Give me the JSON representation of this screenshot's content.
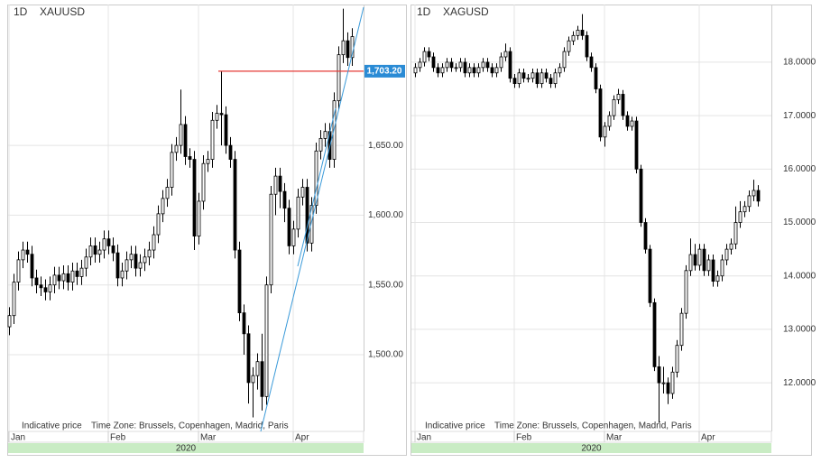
{
  "chart_data": [
    {
      "type": "candlestick",
      "timeframe": "1D",
      "title": "XAUUSD",
      "categories": [
        "Jan",
        null,
        null,
        null,
        null,
        null,
        null,
        null,
        null,
        null,
        null,
        null,
        null,
        null,
        null,
        null,
        null,
        null,
        null,
        null,
        null,
        null,
        "Feb",
        null,
        null,
        null,
        null,
        null,
        null,
        null,
        null,
        null,
        null,
        null,
        null,
        null,
        null,
        null,
        null,
        null,
        null,
        null,
        "Mar",
        null,
        null,
        null,
        null,
        null,
        null,
        null,
        null,
        null,
        null,
        null,
        null,
        null,
        null,
        null,
        null,
        null,
        null,
        null,
        null,
        "Apr",
        null,
        null,
        null,
        null,
        null,
        null,
        null,
        null,
        null,
        null,
        null,
        null,
        null
      ],
      "ohlc": [
        [
          1520,
          1534,
          1514,
          1528
        ],
        [
          1528,
          1558,
          1522,
          1552
        ],
        [
          1552,
          1574,
          1546,
          1568
        ],
        [
          1568,
          1581,
          1562,
          1575
        ],
        [
          1575,
          1581,
          1566,
          1572
        ],
        [
          1572,
          1578,
          1549,
          1555
        ],
        [
          1555,
          1561,
          1544,
          1550
        ],
        [
          1550,
          1556,
          1542,
          1548
        ],
        [
          1548,
          1554,
          1539,
          1545
        ],
        [
          1545,
          1556,
          1539,
          1550
        ],
        [
          1550,
          1563,
          1544,
          1557
        ],
        [
          1557,
          1563,
          1547,
          1553
        ],
        [
          1553,
          1564,
          1547,
          1558
        ],
        [
          1558,
          1564,
          1546,
          1552
        ],
        [
          1552,
          1566,
          1546,
          1560
        ],
        [
          1560,
          1566,
          1550,
          1556
        ],
        [
          1556,
          1568,
          1550,
          1562
        ],
        [
          1562,
          1576,
          1556,
          1570
        ],
        [
          1570,
          1584,
          1564,
          1578
        ],
        [
          1578,
          1584,
          1566,
          1572
        ],
        [
          1572,
          1581,
          1566,
          1575
        ],
        [
          1575,
          1589,
          1569,
          1583
        ],
        [
          1583,
          1589,
          1572,
          1578
        ],
        [
          1578,
          1584,
          1567,
          1573
        ],
        [
          1573,
          1579,
          1549,
          1555
        ],
        [
          1555,
          1566,
          1549,
          1560
        ],
        [
          1560,
          1574,
          1554,
          1568
        ],
        [
          1568,
          1578,
          1562,
          1572
        ],
        [
          1572,
          1578,
          1556,
          1562
        ],
        [
          1562,
          1572,
          1556,
          1566
        ],
        [
          1566,
          1576,
          1560,
          1570
        ],
        [
          1570,
          1581,
          1564,
          1575
        ],
        [
          1575,
          1592,
          1569,
          1586
        ],
        [
          1586,
          1607,
          1580,
          1601
        ],
        [
          1601,
          1618,
          1595,
          1612
        ],
        [
          1612,
          1626,
          1606,
          1620
        ],
        [
          1620,
          1651,
          1614,
          1645
        ],
        [
          1645,
          1656,
          1639,
          1650
        ],
        [
          1650,
          1690,
          1644,
          1665
        ],
        [
          1665,
          1671,
          1636,
          1642
        ],
        [
          1642,
          1648,
          1634,
          1640
        ],
        [
          1640,
          1646,
          1575,
          1585
        ],
        [
          1585,
          1616,
          1579,
          1610
        ],
        [
          1610,
          1643,
          1604,
          1637
        ],
        [
          1637,
          1646,
          1631,
          1640
        ],
        [
          1640,
          1674,
          1634,
          1668
        ],
        [
          1668,
          1679,
          1662,
          1673
        ],
        [
          1673,
          1703,
          1650,
          1672
        ],
        [
          1672,
          1678,
          1644,
          1650
        ],
        [
          1650,
          1656,
          1634,
          1640
        ],
        [
          1640,
          1646,
          1569,
          1575
        ],
        [
          1575,
          1581,
          1524,
          1530
        ],
        [
          1530,
          1536,
          1500,
          1515
        ],
        [
          1515,
          1521,
          1465,
          1480
        ],
        [
          1480,
          1491,
          1455,
          1485
        ],
        [
          1485,
          1501,
          1475,
          1495
        ],
        [
          1495,
          1515,
          1460,
          1470
        ],
        [
          1470,
          1556,
          1464,
          1550
        ],
        [
          1550,
          1621,
          1544,
          1615
        ],
        [
          1615,
          1634,
          1600,
          1628
        ],
        [
          1628,
          1634,
          1605,
          1617
        ],
        [
          1617,
          1623,
          1595,
          1605
        ],
        [
          1605,
          1611,
          1572,
          1578
        ],
        [
          1578,
          1596,
          1572,
          1590
        ],
        [
          1590,
          1619,
          1584,
          1613
        ],
        [
          1613,
          1626,
          1607,
          1620
        ],
        [
          1620,
          1626,
          1574,
          1580
        ],
        [
          1580,
          1613,
          1574,
          1607
        ],
        [
          1607,
          1652,
          1601,
          1646
        ],
        [
          1646,
          1661,
          1640,
          1655
        ],
        [
          1655,
          1666,
          1649,
          1660
        ],
        [
          1660,
          1666,
          1634,
          1640
        ],
        [
          1640,
          1688,
          1634,
          1682
        ],
        [
          1682,
          1721,
          1676,
          1715
        ],
        [
          1715,
          1748,
          1709,
          1725
        ],
        [
          1725,
          1731,
          1707,
          1713
        ],
        [
          1713,
          1734,
          1707,
          1728
        ]
      ],
      "ylim": [
        1445,
        1751
      ],
      "yticks": [
        {
          "value": 1500,
          "label": "1,500.00"
        },
        {
          "value": 1550,
          "label": "1,550.00"
        },
        {
          "value": 1600,
          "label": "1,600.00"
        },
        {
          "value": 1650,
          "label": "1,650.00"
        }
      ],
      "price_line": {
        "value": 1703.2,
        "label": "1,703.20",
        "color": "#e53935"
      },
      "grid": true,
      "up_color": "#ffffff",
      "down_color": "#000000",
      "year_label": "2020",
      "note": "Indicative price",
      "timezone": "Time Zone: Brussels, Copenhagen, Madrid, Paris"
    },
    {
      "type": "candlestick",
      "timeframe": "1D",
      "title": "XAGUSD",
      "categories": [
        "Jan",
        null,
        null,
        null,
        null,
        null,
        null,
        null,
        null,
        null,
        null,
        null,
        null,
        null,
        null,
        null,
        null,
        null,
        null,
        null,
        null,
        null,
        "Feb",
        null,
        null,
        null,
        null,
        null,
        null,
        null,
        null,
        null,
        null,
        null,
        null,
        null,
        null,
        null,
        null,
        null,
        null,
        null,
        "Mar",
        null,
        null,
        null,
        null,
        null,
        null,
        null,
        null,
        null,
        null,
        null,
        null,
        null,
        null,
        null,
        null,
        null,
        null,
        null,
        null,
        "Apr",
        null,
        null,
        null,
        null,
        null,
        null,
        null,
        null,
        null,
        null,
        null,
        null,
        null
      ],
      "ohlc": [
        [
          17.8,
          17.98,
          17.72,
          17.9
        ],
        [
          17.9,
          18.08,
          17.82,
          18.0
        ],
        [
          18.0,
          18.28,
          17.92,
          18.2
        ],
        [
          18.2,
          18.28,
          18.02,
          18.1
        ],
        [
          18.1,
          18.18,
          17.82,
          17.9
        ],
        [
          17.9,
          17.98,
          17.72,
          17.8
        ],
        [
          17.8,
          17.98,
          17.72,
          17.9
        ],
        [
          17.9,
          18.08,
          17.82,
          18.0
        ],
        [
          18.0,
          18.08,
          17.82,
          17.9
        ],
        [
          17.9,
          17.98,
          17.82,
          17.9
        ],
        [
          17.9,
          18.08,
          17.82,
          18.0
        ],
        [
          18.0,
          18.08,
          17.72,
          17.8
        ],
        [
          17.8,
          17.98,
          17.72,
          17.9
        ],
        [
          17.9,
          17.98,
          17.72,
          17.8
        ],
        [
          17.8,
          17.98,
          17.72,
          17.9
        ],
        [
          17.9,
          18.08,
          17.82,
          18.0
        ],
        [
          18.0,
          18.08,
          17.82,
          17.9
        ],
        [
          17.9,
          17.98,
          17.72,
          17.8
        ],
        [
          17.8,
          17.98,
          17.72,
          17.9
        ],
        [
          17.9,
          18.18,
          17.82,
          18.1
        ],
        [
          18.1,
          18.35,
          18.02,
          18.2
        ],
        [
          18.2,
          18.28,
          17.62,
          17.7
        ],
        [
          17.7,
          17.78,
          17.52,
          17.6
        ],
        [
          17.6,
          17.88,
          17.52,
          17.8
        ],
        [
          17.8,
          17.88,
          17.62,
          17.7
        ],
        [
          17.7,
          17.78,
          17.62,
          17.7
        ],
        [
          17.7,
          17.88,
          17.62,
          17.8
        ],
        [
          17.8,
          17.88,
          17.52,
          17.6
        ],
        [
          17.6,
          17.88,
          17.52,
          17.8
        ],
        [
          17.8,
          17.88,
          17.62,
          17.7
        ],
        [
          17.7,
          17.78,
          17.52,
          17.6
        ],
        [
          17.6,
          17.88,
          17.52,
          17.8
        ],
        [
          17.8,
          17.98,
          17.72,
          17.9
        ],
        [
          17.9,
          18.28,
          17.82,
          18.2
        ],
        [
          18.2,
          18.48,
          18.12,
          18.4
        ],
        [
          18.4,
          18.58,
          18.32,
          18.5
        ],
        [
          18.5,
          18.68,
          18.42,
          18.6
        ],
        [
          18.6,
          18.9,
          18.42,
          18.5
        ],
        [
          18.5,
          18.58,
          18.02,
          18.1
        ],
        [
          18.1,
          18.18,
          17.82,
          17.9
        ],
        [
          17.9,
          17.98,
          17.42,
          17.5
        ],
        [
          17.5,
          17.58,
          16.52,
          16.6
        ],
        [
          16.6,
          16.88,
          16.42,
          16.8
        ],
        [
          16.8,
          17.08,
          16.72,
          17.0
        ],
        [
          17.0,
          17.38,
          16.92,
          17.3
        ],
        [
          17.3,
          17.5,
          17.22,
          17.4
        ],
        [
          17.4,
          17.48,
          16.92,
          17.0
        ],
        [
          17.0,
          17.08,
          16.72,
          16.8
        ],
        [
          16.8,
          16.98,
          16.72,
          16.9
        ],
        [
          16.9,
          16.98,
          15.92,
          16.0
        ],
        [
          16.0,
          16.08,
          14.92,
          15.0
        ],
        [
          15.0,
          15.08,
          14.42,
          14.5
        ],
        [
          14.5,
          14.58,
          13.42,
          13.5
        ],
        [
          13.5,
          13.58,
          12.22,
          12.3
        ],
        [
          12.3,
          12.5,
          11.25,
          12.0
        ],
        [
          12.0,
          12.3,
          11.8,
          12.0
        ],
        [
          12.0,
          12.1,
          11.6,
          11.8
        ],
        [
          11.8,
          12.3,
          11.7,
          12.2
        ],
        [
          12.2,
          12.8,
          12.1,
          12.7
        ],
        [
          12.7,
          13.4,
          12.6,
          13.3
        ],
        [
          13.3,
          14.2,
          13.2,
          14.1
        ],
        [
          14.1,
          14.7,
          14.0,
          14.4
        ],
        [
          14.4,
          14.6,
          14.1,
          14.2
        ],
        [
          14.2,
          14.6,
          14.1,
          14.5
        ],
        [
          14.5,
          14.6,
          14.0,
          14.1
        ],
        [
          14.1,
          14.4,
          14.0,
          14.3
        ],
        [
          14.3,
          14.4,
          13.8,
          13.9
        ],
        [
          13.9,
          14.1,
          13.8,
          14.0
        ],
        [
          14.0,
          14.4,
          13.9,
          14.3
        ],
        [
          14.3,
          14.6,
          14.2,
          14.5
        ],
        [
          14.5,
          14.7,
          14.4,
          14.6
        ],
        [
          14.6,
          15.3,
          14.5,
          15.0
        ],
        [
          15.0,
          15.4,
          14.9,
          15.2
        ],
        [
          15.2,
          15.4,
          15.1,
          15.3
        ],
        [
          15.3,
          15.6,
          15.2,
          15.5
        ],
        [
          15.5,
          15.8,
          15.4,
          15.6
        ],
        [
          15.6,
          15.7,
          15.3,
          15.4
        ]
      ],
      "ylim": [
        11.09,
        19.08
      ],
      "yticks": [
        {
          "value": 12,
          "label": "12.0000"
        },
        {
          "value": 13,
          "label": "13.0000"
        },
        {
          "value": 14,
          "label": "14.0000"
        },
        {
          "value": 15,
          "label": "15.0000"
        },
        {
          "value": 16,
          "label": "16.0000"
        },
        {
          "value": 17,
          "label": "17.0000"
        },
        {
          "value": 18,
          "label": "18.0000"
        }
      ],
      "grid": true,
      "up_color": "#ffffff",
      "down_color": "#000000",
      "year_label": "2020",
      "note": "Indicative price",
      "timezone": "Time Zone: Brussels, Copenhagen, Madrid, Paris"
    }
  ]
}
